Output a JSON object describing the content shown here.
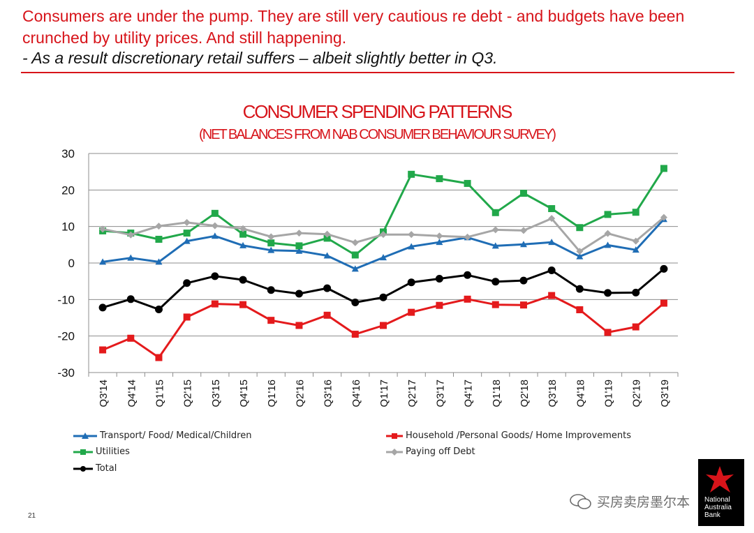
{
  "header": {
    "headline": "Consumers are under the pump. They are still very cautious re debt - and budgets have been crunched by utility prices. And still happening.",
    "subline": "- As a result discretionary retail suffers – albeit slightly better in Q3."
  },
  "chart_data": {
    "type": "line",
    "title": "CONSUMER SPENDING PATTERNS",
    "subtitle": "(NET BALANCES FROM NAB CONSUMER BEHAVIOUR SURVEY)",
    "xlabel": "",
    "ylabel": "",
    "ylim": [
      -30,
      30
    ],
    "yticks": [
      30,
      20,
      10,
      0,
      -10,
      -20,
      -30
    ],
    "grid": true,
    "legend_position": "bottom",
    "categories": [
      "Q3'14",
      "Q4'14",
      "Q1'15",
      "Q2'15",
      "Q3'15",
      "Q4'15",
      "Q1'16",
      "Q2'16",
      "Q3'16",
      "Q4'16",
      "Q1'17",
      "Q2'17",
      "Q3'17",
      "Q4'17",
      "Q1'18",
      "Q2'18",
      "Q3'18",
      "Q4'18",
      "Q1'19",
      "Q2'19",
      "Q3'19"
    ],
    "series": [
      {
        "name": "Transport/ Food/ Medical/Children",
        "color": "#1f6db5",
        "marker": "triangle",
        "values": [
          0.3,
          1.4,
          0.3,
          6.0,
          7.4,
          4.8,
          3.5,
          3.3,
          2.0,
          -1.6,
          1.5,
          4.5,
          5.7,
          7.0,
          4.7,
          5.1,
          5.7,
          1.8,
          4.9,
          3.6,
          12.0
        ]
      },
      {
        "name": "Household /Personal Goods/ Home Improvements",
        "color": "#e41a1c",
        "marker": "square",
        "values": [
          -23.8,
          -20.6,
          -25.9,
          -14.8,
          -11.2,
          -11.4,
          -15.7,
          -17.1,
          -14.3,
          -19.5,
          -17.1,
          -13.5,
          -11.6,
          -9.9,
          -11.4,
          -11.5,
          -8.9,
          -12.8,
          -19.0,
          -17.5,
          -11.0
        ]
      },
      {
        "name": "Utilities",
        "color": "#21a84a",
        "marker": "square",
        "values": [
          8.8,
          8.2,
          6.5,
          8.2,
          13.6,
          7.9,
          5.5,
          4.7,
          6.8,
          2.2,
          8.5,
          24.3,
          23.1,
          21.8,
          13.8,
          19.1,
          14.9,
          9.7,
          13.3,
          13.9,
          25.9
        ]
      },
      {
        "name": "Paying off Debt",
        "color": "#a6a6a6",
        "marker": "diamond",
        "values": [
          9.3,
          7.7,
          10.1,
          11.1,
          10.2,
          9.4,
          7.2,
          8.2,
          7.9,
          5.6,
          7.8,
          7.8,
          7.4,
          7.1,
          9.1,
          8.9,
          12.2,
          3.2,
          8.1,
          6.0,
          12.5
        ]
      },
      {
        "name": "Total",
        "color": "#000000",
        "marker": "circle",
        "values": [
          -12.2,
          -9.9,
          -12.7,
          -5.5,
          -3.6,
          -4.6,
          -7.4,
          -8.4,
          -6.9,
          -10.8,
          -9.4,
          -5.3,
          -4.3,
          -3.3,
          -5.1,
          -4.8,
          -2.0,
          -7.1,
          -8.2,
          -8.1,
          -1.6
        ]
      }
    ]
  },
  "footer": {
    "page_number": "21",
    "watermark_text": "买房卖房墨尔本",
    "logo_lines": [
      "National",
      "Australia",
      "Bank"
    ]
  }
}
